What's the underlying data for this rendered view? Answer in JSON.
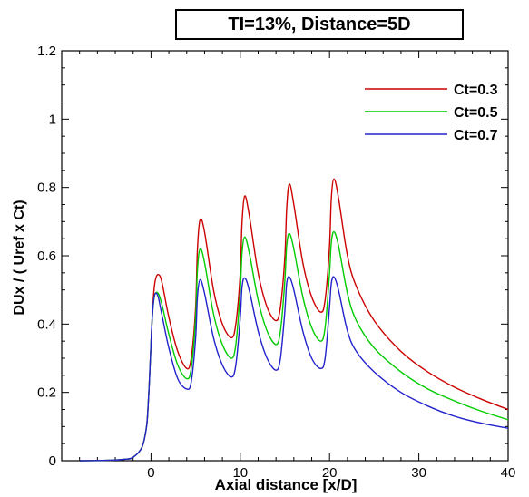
{
  "chart_data": {
    "type": "line",
    "title": "TI=13%, Distance=5D",
    "xlabel": "Axial distance [x/D]",
    "ylabel": "DUx / ( Uref x Ct)",
    "xlim": [
      -10,
      40
    ],
    "ylim": [
      0,
      1.2
    ],
    "xticks": [
      0,
      10,
      20,
      30,
      40
    ],
    "xtick_labels": [
      "0",
      "10",
      "20",
      "30",
      "40"
    ],
    "yticks": [
      0,
      0.2,
      0.4,
      0.6,
      0.8,
      1,
      1.2
    ],
    "ytick_labels": [
      "0",
      "0.2",
      "0.4",
      "0.6",
      "0.8",
      "1",
      "1.2"
    ],
    "grid": false,
    "legend_position": "top-right",
    "series": [
      {
        "name": "Ct=0.3",
        "color": "#cc0000",
        "points": [
          [
            -8,
            0
          ],
          [
            -5,
            0.001
          ],
          [
            -3,
            0.004
          ],
          [
            -2,
            0.01
          ],
          [
            -1,
            0.04
          ],
          [
            -0.5,
            0.1
          ],
          [
            -0.3,
            0.17
          ],
          [
            -0.1,
            0.28
          ],
          [
            0.1,
            0.4
          ],
          [
            0.3,
            0.49
          ],
          [
            0.5,
            0.53
          ],
          [
            0.8,
            0.545
          ],
          [
            1.2,
            0.525
          ],
          [
            2,
            0.42
          ],
          [
            3,
            0.32
          ],
          [
            4,
            0.27
          ],
          [
            4.5,
            0.3
          ],
          [
            5,
            0.45
          ],
          [
            5.2,
            0.62
          ],
          [
            5.5,
            0.705
          ],
          [
            6,
            0.67
          ],
          [
            7,
            0.5
          ],
          [
            8,
            0.4
          ],
          [
            9,
            0.36
          ],
          [
            9.5,
            0.4
          ],
          [
            10,
            0.55
          ],
          [
            10.2,
            0.7
          ],
          [
            10.5,
            0.775
          ],
          [
            11,
            0.72
          ],
          [
            12,
            0.55
          ],
          [
            13,
            0.45
          ],
          [
            14,
            0.41
          ],
          [
            14.5,
            0.45
          ],
          [
            15,
            0.6
          ],
          [
            15.2,
            0.74
          ],
          [
            15.5,
            0.81
          ],
          [
            16,
            0.75
          ],
          [
            17,
            0.58
          ],
          [
            18,
            0.48
          ],
          [
            19,
            0.435
          ],
          [
            19.5,
            0.47
          ],
          [
            20,
            0.63
          ],
          [
            20.2,
            0.77
          ],
          [
            20.5,
            0.825
          ],
          [
            21,
            0.77
          ],
          [
            22,
            0.6
          ],
          [
            23,
            0.51
          ],
          [
            25,
            0.41
          ],
          [
            28,
            0.32
          ],
          [
            31,
            0.26
          ],
          [
            34,
            0.215
          ],
          [
            37,
            0.18
          ],
          [
            40,
            0.15
          ]
        ]
      },
      {
        "name": "Ct=0.5",
        "color": "#00cc00",
        "points": [
          [
            -8,
            0
          ],
          [
            -5,
            0.001
          ],
          [
            -3,
            0.004
          ],
          [
            -2,
            0.01
          ],
          [
            -1,
            0.04
          ],
          [
            -0.5,
            0.1
          ],
          [
            -0.3,
            0.17
          ],
          [
            -0.1,
            0.28
          ],
          [
            0.1,
            0.4
          ],
          [
            0.3,
            0.47
          ],
          [
            0.5,
            0.49
          ],
          [
            0.8,
            0.49
          ],
          [
            1.2,
            0.46
          ],
          [
            2,
            0.37
          ],
          [
            3,
            0.28
          ],
          [
            4,
            0.24
          ],
          [
            4.5,
            0.27
          ],
          [
            5,
            0.42
          ],
          [
            5.2,
            0.56
          ],
          [
            5.5,
            0.62
          ],
          [
            6,
            0.58
          ],
          [
            7,
            0.43
          ],
          [
            8,
            0.34
          ],
          [
            9,
            0.3
          ],
          [
            9.5,
            0.34
          ],
          [
            10,
            0.5
          ],
          [
            10.2,
            0.61
          ],
          [
            10.5,
            0.655
          ],
          [
            11,
            0.61
          ],
          [
            12,
            0.47
          ],
          [
            13,
            0.38
          ],
          [
            14,
            0.34
          ],
          [
            14.5,
            0.38
          ],
          [
            15,
            0.53
          ],
          [
            15.2,
            0.63
          ],
          [
            15.5,
            0.665
          ],
          [
            16,
            0.62
          ],
          [
            17,
            0.48
          ],
          [
            18,
            0.39
          ],
          [
            19,
            0.35
          ],
          [
            19.5,
            0.39
          ],
          [
            20,
            0.55
          ],
          [
            20.2,
            0.64
          ],
          [
            20.5,
            0.67
          ],
          [
            21,
            0.63
          ],
          [
            22,
            0.49
          ],
          [
            23,
            0.41
          ],
          [
            25,
            0.33
          ],
          [
            28,
            0.26
          ],
          [
            31,
            0.21
          ],
          [
            34,
            0.175
          ],
          [
            37,
            0.145
          ],
          [
            40,
            0.12
          ]
        ]
      },
      {
        "name": "Ct=0.7",
        "color": "#2222cc",
        "points": [
          [
            -8,
            0
          ],
          [
            -5,
            0.001
          ],
          [
            -3,
            0.004
          ],
          [
            -2,
            0.01
          ],
          [
            -1,
            0.04
          ],
          [
            -0.5,
            0.1
          ],
          [
            -0.3,
            0.17
          ],
          [
            -0.1,
            0.28
          ],
          [
            0.1,
            0.4
          ],
          [
            0.3,
            0.47
          ],
          [
            0.5,
            0.49
          ],
          [
            0.8,
            0.48
          ],
          [
            1.2,
            0.43
          ],
          [
            2,
            0.33
          ],
          [
            3,
            0.24
          ],
          [
            4,
            0.21
          ],
          [
            4.5,
            0.23
          ],
          [
            5,
            0.36
          ],
          [
            5.2,
            0.48
          ],
          [
            5.5,
            0.53
          ],
          [
            6,
            0.49
          ],
          [
            7,
            0.36
          ],
          [
            8,
            0.28
          ],
          [
            9,
            0.245
          ],
          [
            9.5,
            0.28
          ],
          [
            10,
            0.42
          ],
          [
            10.2,
            0.51
          ],
          [
            10.5,
            0.535
          ],
          [
            11,
            0.5
          ],
          [
            12,
            0.38
          ],
          [
            13,
            0.3
          ],
          [
            14,
            0.265
          ],
          [
            14.5,
            0.3
          ],
          [
            15,
            0.44
          ],
          [
            15.2,
            0.52
          ],
          [
            15.5,
            0.538
          ],
          [
            16,
            0.5
          ],
          [
            17,
            0.38
          ],
          [
            18,
            0.3
          ],
          [
            19,
            0.27
          ],
          [
            19.5,
            0.3
          ],
          [
            20,
            0.45
          ],
          [
            20.2,
            0.52
          ],
          [
            20.5,
            0.538
          ],
          [
            21,
            0.5
          ],
          [
            22,
            0.38
          ],
          [
            23,
            0.32
          ],
          [
            25,
            0.26
          ],
          [
            28,
            0.2
          ],
          [
            31,
            0.16
          ],
          [
            34,
            0.13
          ],
          [
            37,
            0.11
          ],
          [
            40,
            0.095
          ]
        ]
      }
    ]
  }
}
